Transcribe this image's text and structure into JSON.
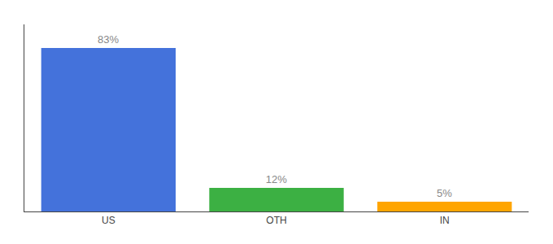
{
  "chart_data": {
    "type": "bar",
    "categories": [
      "US",
      "OTH",
      "IN"
    ],
    "values": [
      83,
      12,
      5
    ],
    "colors": [
      "#4472DB",
      "#3CB043",
      "#FFA500"
    ],
    "data_labels": true,
    "value_labels": [
      "83%",
      "12%",
      "5%"
    ],
    "ylim": [
      0,
      95
    ],
    "yticks": [],
    "tick_labels": "x",
    "grid": false
  }
}
